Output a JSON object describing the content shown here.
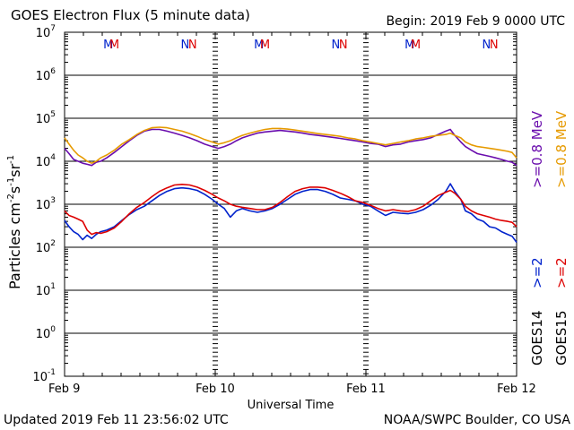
{
  "header": {
    "title": "GOES Electron Flux (5 minute data)",
    "begin": "Begin: 2019 Feb 9 0000 UTC"
  },
  "footer": {
    "updated": "Updated 2019 Feb 11 23:56:02 UTC",
    "credit": "NOAA/SWPC Boulder, CO USA"
  },
  "colors": {
    "goes14_2mev": "#0022cc",
    "goes15_2mev": "#dd0000",
    "goes14_08mev": "#6a0dad",
    "goes15_08mev": "#e69a00",
    "threshold": "#000000"
  },
  "chart_data": {
    "type": "line",
    "xlabel": "Universal Time",
    "ylabel_parts": {
      "base": "Particles cm",
      "e1": "-2",
      "s": "s",
      "e2": "-1",
      "sr": "sr",
      "e3": "-1"
    },
    "y_log": true,
    "ylim": [
      0.1,
      10000000
    ],
    "y_ticks": [
      {
        "base": "10",
        "exp": "7"
      },
      {
        "base": "10",
        "exp": "6"
      },
      {
        "base": "10",
        "exp": "5"
      },
      {
        "base": "10",
        "exp": "4"
      },
      {
        "base": "10",
        "exp": "3"
      },
      {
        "base": "10",
        "exp": "2"
      },
      {
        "base": "10",
        "exp": "1"
      },
      {
        "base": "10",
        "exp": "0"
      },
      {
        "base": "10",
        "exp": "-1"
      }
    ],
    "x_range_days": [
      0,
      3
    ],
    "x_ticks": [
      "Feb 9",
      "Feb 10",
      "Feb 11",
      "Feb 12"
    ],
    "threshold": 1000,
    "mn_markers": [
      {
        "day": 0.29,
        "text": "M",
        "sat": "GOES14"
      },
      {
        "day": 0.33,
        "text": "M",
        "sat": "GOES15"
      },
      {
        "day": 0.8,
        "text": "N",
        "sat": "GOES14"
      },
      {
        "day": 0.85,
        "text": "N",
        "sat": "GOES15"
      },
      {
        "day": 1.29,
        "text": "M",
        "sat": "GOES14"
      },
      {
        "day": 1.33,
        "text": "M",
        "sat": "GOES15"
      },
      {
        "day": 1.8,
        "text": "N",
        "sat": "GOES14"
      },
      {
        "day": 1.85,
        "text": "N",
        "sat": "GOES15"
      },
      {
        "day": 2.29,
        "text": "M",
        "sat": "GOES14"
      },
      {
        "day": 2.33,
        "text": "M",
        "sat": "GOES15"
      },
      {
        "day": 2.8,
        "text": "N",
        "sat": "GOES14"
      },
      {
        "day": 2.85,
        "text": "N",
        "sat": "GOES15"
      }
    ],
    "right_legend": {
      "mev08_goes14": ">=0.8  MeV",
      "mev08_goes15": ">=0.8  MeV",
      "mev2_goes14": ">=2",
      "mev2_goes15": ">=2",
      "goes14": "GOES14",
      "goes15": "GOES15"
    },
    "series": [
      {
        "name": "GOES14 >=2 MeV",
        "color": "#0022cc",
        "points": [
          [
            0.0,
            420
          ],
          [
            0.03,
            300
          ],
          [
            0.06,
            230
          ],
          [
            0.09,
            200
          ],
          [
            0.12,
            150
          ],
          [
            0.15,
            190
          ],
          [
            0.18,
            160
          ],
          [
            0.21,
            200
          ],
          [
            0.24,
            230
          ],
          [
            0.28,
            250
          ],
          [
            0.33,
            300
          ],
          [
            0.38,
            420
          ],
          [
            0.43,
            580
          ],
          [
            0.48,
            750
          ],
          [
            0.53,
            900
          ],
          [
            0.58,
            1200
          ],
          [
            0.63,
            1600
          ],
          [
            0.68,
            2000
          ],
          [
            0.73,
            2300
          ],
          [
            0.78,
            2400
          ],
          [
            0.83,
            2300
          ],
          [
            0.88,
            2100
          ],
          [
            0.93,
            1700
          ],
          [
            0.98,
            1300
          ],
          [
            1.02,
            1000
          ],
          [
            1.06,
            800
          ],
          [
            1.1,
            500
          ],
          [
            1.14,
            700
          ],
          [
            1.18,
            800
          ],
          [
            1.23,
            700
          ],
          [
            1.28,
            650
          ],
          [
            1.33,
            700
          ],
          [
            1.38,
            800
          ],
          [
            1.43,
            1000
          ],
          [
            1.48,
            1300
          ],
          [
            1.53,
            1700
          ],
          [
            1.58,
            2000
          ],
          [
            1.63,
            2200
          ],
          [
            1.68,
            2200
          ],
          [
            1.73,
            2000
          ],
          [
            1.78,
            1700
          ],
          [
            1.83,
            1400
          ],
          [
            1.88,
            1300
          ],
          [
            1.93,
            1200
          ],
          [
            1.98,
            1000
          ],
          [
            2.03,
            900
          ],
          [
            2.08,
            700
          ],
          [
            2.13,
            550
          ],
          [
            2.18,
            650
          ],
          [
            2.23,
            620
          ],
          [
            2.28,
            600
          ],
          [
            2.33,
            650
          ],
          [
            2.38,
            750
          ],
          [
            2.43,
            950
          ],
          [
            2.48,
            1300
          ],
          [
            2.53,
            2000
          ],
          [
            2.56,
            3000
          ],
          [
            2.59,
            2000
          ],
          [
            2.63,
            1300
          ],
          [
            2.66,
            700
          ],
          [
            2.7,
            600
          ],
          [
            2.74,
            450
          ],
          [
            2.78,
            400
          ],
          [
            2.82,
            300
          ],
          [
            2.86,
            280
          ],
          [
            2.9,
            230
          ],
          [
            2.94,
            200
          ],
          [
            2.97,
            180
          ],
          [
            3.0,
            130
          ]
        ]
      },
      {
        "name": "GOES15 >=2 MeV",
        "color": "#dd0000",
        "points": [
          [
            0.0,
            700
          ],
          [
            0.03,
            550
          ],
          [
            0.06,
            500
          ],
          [
            0.09,
            450
          ],
          [
            0.12,
            400
          ],
          [
            0.15,
            250
          ],
          [
            0.18,
            200
          ],
          [
            0.21,
            220
          ],
          [
            0.24,
            210
          ],
          [
            0.28,
            230
          ],
          [
            0.33,
            280
          ],
          [
            0.38,
            400
          ],
          [
            0.43,
            600
          ],
          [
            0.48,
            850
          ],
          [
            0.53,
            1100
          ],
          [
            0.58,
            1500
          ],
          [
            0.63,
            2000
          ],
          [
            0.68,
            2400
          ],
          [
            0.73,
            2800
          ],
          [
            0.78,
            2900
          ],
          [
            0.83,
            2800
          ],
          [
            0.88,
            2500
          ],
          [
            0.93,
            2100
          ],
          [
            0.98,
            1700
          ],
          [
            1.02,
            1400
          ],
          [
            1.06,
            1200
          ],
          [
            1.1,
            1000
          ],
          [
            1.14,
            900
          ],
          [
            1.18,
            850
          ],
          [
            1.23,
            800
          ],
          [
            1.28,
            750
          ],
          [
            1.33,
            750
          ],
          [
            1.38,
            850
          ],
          [
            1.43,
            1100
          ],
          [
            1.48,
            1500
          ],
          [
            1.53,
            2000
          ],
          [
            1.58,
            2300
          ],
          [
            1.63,
            2500
          ],
          [
            1.68,
            2500
          ],
          [
            1.73,
            2400
          ],
          [
            1.78,
            2100
          ],
          [
            1.83,
            1800
          ],
          [
            1.88,
            1500
          ],
          [
            1.93,
            1200
          ],
          [
            1.98,
            1100
          ],
          [
            2.03,
            950
          ],
          [
            2.08,
            800
          ],
          [
            2.13,
            700
          ],
          [
            2.18,
            750
          ],
          [
            2.23,
            700
          ],
          [
            2.28,
            680
          ],
          [
            2.33,
            750
          ],
          [
            2.38,
            900
          ],
          [
            2.43,
            1200
          ],
          [
            2.48,
            1600
          ],
          [
            2.53,
            1900
          ],
          [
            2.56,
            2100
          ],
          [
            2.59,
            1800
          ],
          [
            2.63,
            1300
          ],
          [
            2.66,
            900
          ],
          [
            2.7,
            700
          ],
          [
            2.74,
            600
          ],
          [
            2.78,
            550
          ],
          [
            2.82,
            500
          ],
          [
            2.86,
            450
          ],
          [
            2.9,
            420
          ],
          [
            2.94,
            400
          ],
          [
            2.97,
            380
          ],
          [
            3.0,
            300
          ]
        ]
      },
      {
        "name": "GOES14 >=0.8 MeV",
        "color": "#6a0dad",
        "points": [
          [
            0.0,
            20000
          ],
          [
            0.03,
            15000
          ],
          [
            0.06,
            11000
          ],
          [
            0.09,
            10000
          ],
          [
            0.12,
            9000
          ],
          [
            0.15,
            8500
          ],
          [
            0.18,
            8000
          ],
          [
            0.21,
            9500
          ],
          [
            0.24,
            10000
          ],
          [
            0.28,
            12000
          ],
          [
            0.33,
            16000
          ],
          [
            0.38,
            22000
          ],
          [
            0.43,
            30000
          ],
          [
            0.48,
            40000
          ],
          [
            0.53,
            50000
          ],
          [
            0.58,
            55000
          ],
          [
            0.63,
            55000
          ],
          [
            0.68,
            50000
          ],
          [
            0.73,
            45000
          ],
          [
            0.78,
            40000
          ],
          [
            0.83,
            35000
          ],
          [
            0.88,
            30000
          ],
          [
            0.93,
            25000
          ],
          [
            0.98,
            22000
          ],
          [
            1.02,
            20000
          ],
          [
            1.06,
            22000
          ],
          [
            1.1,
            25000
          ],
          [
            1.14,
            30000
          ],
          [
            1.18,
            35000
          ],
          [
            1.23,
            40000
          ],
          [
            1.28,
            45000
          ],
          [
            1.33,
            48000
          ],
          [
            1.38,
            50000
          ],
          [
            1.43,
            52000
          ],
          [
            1.48,
            50000
          ],
          [
            1.53,
            48000
          ],
          [
            1.58,
            45000
          ],
          [
            1.63,
            42000
          ],
          [
            1.68,
            40000
          ],
          [
            1.73,
            38000
          ],
          [
            1.78,
            36000
          ],
          [
            1.83,
            34000
          ],
          [
            1.88,
            32000
          ],
          [
            1.93,
            30000
          ],
          [
            1.98,
            28000
          ],
          [
            2.03,
            26000
          ],
          [
            2.08,
            25000
          ],
          [
            2.13,
            22000
          ],
          [
            2.18,
            24000
          ],
          [
            2.23,
            25000
          ],
          [
            2.28,
            28000
          ],
          [
            2.33,
            30000
          ],
          [
            2.38,
            32000
          ],
          [
            2.43,
            35000
          ],
          [
            2.48,
            42000
          ],
          [
            2.53,
            50000
          ],
          [
            2.56,
            55000
          ],
          [
            2.59,
            40000
          ],
          [
            2.63,
            28000
          ],
          [
            2.66,
            22000
          ],
          [
            2.7,
            18000
          ],
          [
            2.74,
            15000
          ],
          [
            2.78,
            14000
          ],
          [
            2.82,
            13000
          ],
          [
            2.86,
            12000
          ],
          [
            2.9,
            11000
          ],
          [
            2.94,
            10000
          ],
          [
            2.97,
            9500
          ],
          [
            3.0,
            8000
          ]
        ]
      },
      {
        "name": "GOES15 >=0.8 MeV",
        "color": "#e69a00",
        "points": [
          [
            0.0,
            35000
          ],
          [
            0.03,
            25000
          ],
          [
            0.06,
            18000
          ],
          [
            0.09,
            14000
          ],
          [
            0.12,
            12000
          ],
          [
            0.15,
            10000
          ],
          [
            0.18,
            9000
          ],
          [
            0.21,
            10000
          ],
          [
            0.24,
            12000
          ],
          [
            0.28,
            14000
          ],
          [
            0.33,
            18000
          ],
          [
            0.38,
            25000
          ],
          [
            0.43,
            32000
          ],
          [
            0.48,
            42000
          ],
          [
            0.53,
            52000
          ],
          [
            0.58,
            60000
          ],
          [
            0.63,
            62000
          ],
          [
            0.68,
            60000
          ],
          [
            0.73,
            55000
          ],
          [
            0.78,
            50000
          ],
          [
            0.83,
            44000
          ],
          [
            0.88,
            38000
          ],
          [
            0.93,
            32000
          ],
          [
            0.98,
            28000
          ],
          [
            1.02,
            25000
          ],
          [
            1.06,
            27000
          ],
          [
            1.1,
            30000
          ],
          [
            1.14,
            35000
          ],
          [
            1.18,
            40000
          ],
          [
            1.23,
            45000
          ],
          [
            1.28,
            50000
          ],
          [
            1.33,
            55000
          ],
          [
            1.38,
            58000
          ],
          [
            1.43,
            58000
          ],
          [
            1.48,
            56000
          ],
          [
            1.53,
            53000
          ],
          [
            1.58,
            50000
          ],
          [
            1.63,
            47000
          ],
          [
            1.68,
            44000
          ],
          [
            1.73,
            42000
          ],
          [
            1.78,
            40000
          ],
          [
            1.83,
            38000
          ],
          [
            1.88,
            35000
          ],
          [
            1.93,
            33000
          ],
          [
            1.98,
            30000
          ],
          [
            2.03,
            28000
          ],
          [
            2.08,
            26000
          ],
          [
            2.13,
            24000
          ],
          [
            2.18,
            26000
          ],
          [
            2.23,
            28000
          ],
          [
            2.28,
            30000
          ],
          [
            2.33,
            33000
          ],
          [
            2.38,
            35000
          ],
          [
            2.43,
            38000
          ],
          [
            2.48,
            40000
          ],
          [
            2.53,
            42000
          ],
          [
            2.56,
            45000
          ],
          [
            2.59,
            40000
          ],
          [
            2.63,
            35000
          ],
          [
            2.66,
            28000
          ],
          [
            2.7,
            24000
          ],
          [
            2.74,
            22000
          ],
          [
            2.78,
            21000
          ],
          [
            2.82,
            20000
          ],
          [
            2.86,
            19000
          ],
          [
            2.9,
            18000
          ],
          [
            2.94,
            17000
          ],
          [
            2.97,
            16000
          ],
          [
            3.0,
            12000
          ]
        ]
      }
    ]
  }
}
